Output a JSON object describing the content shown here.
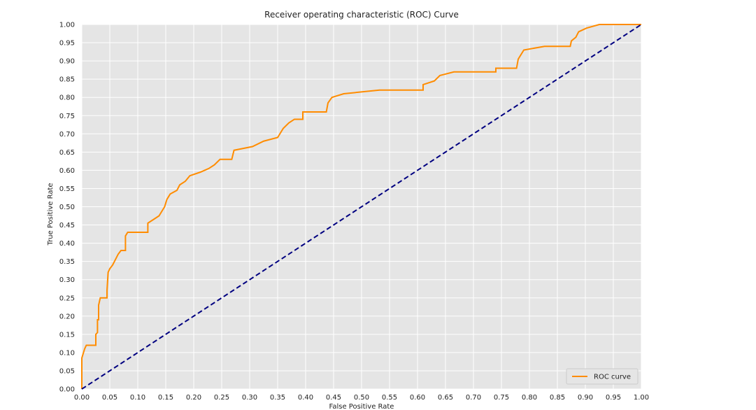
{
  "chart_data": {
    "type": "line",
    "title": "Receiver operating characteristic (ROC) Curve",
    "xlabel": "False Positive Rate",
    "ylabel": "True Positive Rate",
    "xlim": [
      0,
      1
    ],
    "ylim": [
      0,
      1
    ],
    "grid": true,
    "legend_position": "bottom-right",
    "xticks": [
      "0.00",
      "0.05",
      "0.10",
      "0.15",
      "0.20",
      "0.25",
      "0.30",
      "0.35",
      "0.40",
      "0.45",
      "0.50",
      "0.55",
      "0.60",
      "0.65",
      "0.70",
      "0.75",
      "0.80",
      "0.85",
      "0.90",
      "0.95",
      "1.00"
    ],
    "yticks": [
      "0.00",
      "0.05",
      "0.10",
      "0.15",
      "0.20",
      "0.25",
      "0.30",
      "0.35",
      "0.40",
      "0.45",
      "0.50",
      "0.55",
      "0.60",
      "0.65",
      "0.70",
      "0.75",
      "0.80",
      "0.85",
      "0.90",
      "0.95",
      "1.00"
    ],
    "colors": {
      "background": "#e5e5e5",
      "grid": "#ffffff",
      "roc": "#ff8c00",
      "diagonal": "#000080"
    },
    "series": [
      {
        "name": "ROC curve",
        "show_in_legend": true,
        "style": "solid",
        "color": "#ff8c00",
        "steps": [
          [
            0.0,
            0.0
          ],
          [
            0.0,
            0.05
          ],
          [
            0.0,
            0.085
          ],
          [
            0.003,
            0.1
          ],
          [
            0.005,
            0.11
          ],
          [
            0.008,
            0.12
          ],
          [
            0.025,
            0.12
          ],
          [
            0.025,
            0.15
          ],
          [
            0.028,
            0.155
          ],
          [
            0.028,
            0.19
          ],
          [
            0.03,
            0.19
          ],
          [
            0.03,
            0.23
          ],
          [
            0.033,
            0.25
          ],
          [
            0.045,
            0.25
          ],
          [
            0.045,
            0.27
          ],
          [
            0.047,
            0.32
          ],
          [
            0.05,
            0.33
          ],
          [
            0.055,
            0.34
          ],
          [
            0.06,
            0.355
          ],
          [
            0.065,
            0.37
          ],
          [
            0.07,
            0.38
          ],
          [
            0.078,
            0.38
          ],
          [
            0.078,
            0.42
          ],
          [
            0.082,
            0.43
          ],
          [
            0.118,
            0.43
          ],
          [
            0.118,
            0.455
          ],
          [
            0.128,
            0.465
          ],
          [
            0.138,
            0.475
          ],
          [
            0.148,
            0.5
          ],
          [
            0.152,
            0.52
          ],
          [
            0.158,
            0.535
          ],
          [
            0.17,
            0.545
          ],
          [
            0.175,
            0.56
          ],
          [
            0.185,
            0.57
          ],
          [
            0.193,
            0.585
          ],
          [
            0.212,
            0.595
          ],
          [
            0.227,
            0.605
          ],
          [
            0.237,
            0.615
          ],
          [
            0.247,
            0.63
          ],
          [
            0.268,
            0.63
          ],
          [
            0.272,
            0.655
          ],
          [
            0.305,
            0.665
          ],
          [
            0.325,
            0.68
          ],
          [
            0.35,
            0.69
          ],
          [
            0.36,
            0.715
          ],
          [
            0.37,
            0.73
          ],
          [
            0.38,
            0.74
          ],
          [
            0.395,
            0.74
          ],
          [
            0.395,
            0.76
          ],
          [
            0.437,
            0.76
          ],
          [
            0.44,
            0.785
          ],
          [
            0.447,
            0.8
          ],
          [
            0.468,
            0.81
          ],
          [
            0.532,
            0.82
          ],
          [
            0.61,
            0.82
          ],
          [
            0.61,
            0.835
          ],
          [
            0.63,
            0.845
          ],
          [
            0.64,
            0.86
          ],
          [
            0.665,
            0.87
          ],
          [
            0.74,
            0.87
          ],
          [
            0.74,
            0.88
          ],
          [
            0.777,
            0.88
          ],
          [
            0.78,
            0.905
          ],
          [
            0.79,
            0.93
          ],
          [
            0.827,
            0.94
          ],
          [
            0.873,
            0.94
          ],
          [
            0.875,
            0.955
          ],
          [
            0.883,
            0.965
          ],
          [
            0.888,
            0.98
          ],
          [
            0.902,
            0.99
          ],
          [
            0.925,
            1.0
          ],
          [
            1.0,
            1.0
          ]
        ]
      },
      {
        "name": "chance",
        "show_in_legend": false,
        "style": "dashed",
        "color": "#000080",
        "x": [
          0,
          1
        ],
        "y": [
          0,
          1
        ]
      }
    ]
  }
}
